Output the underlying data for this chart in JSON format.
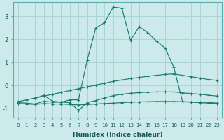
{
  "background_color": "#cceaeb",
  "grid_color": "#aad4d6",
  "line_color": "#1a7a6e",
  "xlabel": "Humidex (Indice chaleur)",
  "xlim": [
    -0.5,
    23.5
  ],
  "ylim": [
    -1.4,
    3.6
  ],
  "yticks": [
    -1,
    0,
    1,
    2,
    3
  ],
  "xticks": [
    0,
    1,
    2,
    3,
    4,
    5,
    6,
    7,
    8,
    9,
    10,
    11,
    12,
    13,
    14,
    15,
    16,
    17,
    18,
    19,
    20,
    21,
    22,
    23
  ],
  "series": [
    {
      "x": [
        0,
        1,
        2,
        3,
        4,
        5,
        6,
        7,
        8,
        9,
        10,
        11,
        12,
        13,
        14,
        15,
        16,
        17,
        18,
        19,
        20,
        21,
        22,
        23
      ],
      "y": [
        -0.7,
        -0.62,
        -0.54,
        -0.46,
        -0.38,
        -0.3,
        -0.22,
        -0.14,
        -0.06,
        0.02,
        0.1,
        0.18,
        0.24,
        0.3,
        0.35,
        0.4,
        0.44,
        0.48,
        0.5,
        0.44,
        0.38,
        0.32,
        0.26,
        0.22
      ]
    },
    {
      "x": [
        0,
        1,
        2,
        3,
        4,
        5,
        6,
        7,
        8,
        9,
        10,
        11,
        12,
        13,
        14,
        15,
        16,
        17,
        18,
        19,
        20,
        21,
        22,
        23
      ],
      "y": [
        -0.78,
        -0.8,
        -0.82,
        -0.78,
        -0.8,
        -0.8,
        -0.82,
        -0.84,
        -0.82,
        -0.8,
        -0.78,
        -0.76,
        -0.74,
        -0.72,
        -0.71,
        -0.7,
        -0.69,
        -0.69,
        -0.69,
        -0.7,
        -0.71,
        -0.72,
        -0.73,
        -0.76
      ]
    },
    {
      "x": [
        0,
        1,
        2,
        3,
        4,
        5,
        6,
        7,
        8,
        9,
        10,
        11,
        12,
        13,
        14,
        15,
        16,
        17,
        18,
        19,
        20,
        21,
        22,
        23
      ],
      "y": [
        -0.74,
        -0.76,
        -0.8,
        -0.68,
        -0.72,
        -0.72,
        -0.74,
        -1.08,
        -0.74,
        -0.65,
        -0.54,
        -0.44,
        -0.38,
        -0.34,
        -0.31,
        -0.29,
        -0.28,
        -0.28,
        -0.28,
        -0.32,
        -0.35,
        -0.38,
        -0.42,
        -0.46
      ]
    },
    {
      "x": [
        2,
        3,
        4,
        5,
        6,
        7,
        8,
        9,
        10,
        11,
        12,
        13,
        14,
        15,
        16,
        17,
        18,
        19,
        20,
        21,
        22,
        23
      ],
      "y": [
        -0.55,
        -0.42,
        -0.68,
        -0.72,
        -0.62,
        -0.62,
        1.1,
        2.5,
        2.72,
        3.4,
        3.35,
        1.95,
        2.55,
        2.28,
        1.92,
        1.62,
        0.78,
        -0.7,
        -0.72,
        -0.74,
        -0.76,
        -0.78
      ]
    }
  ]
}
